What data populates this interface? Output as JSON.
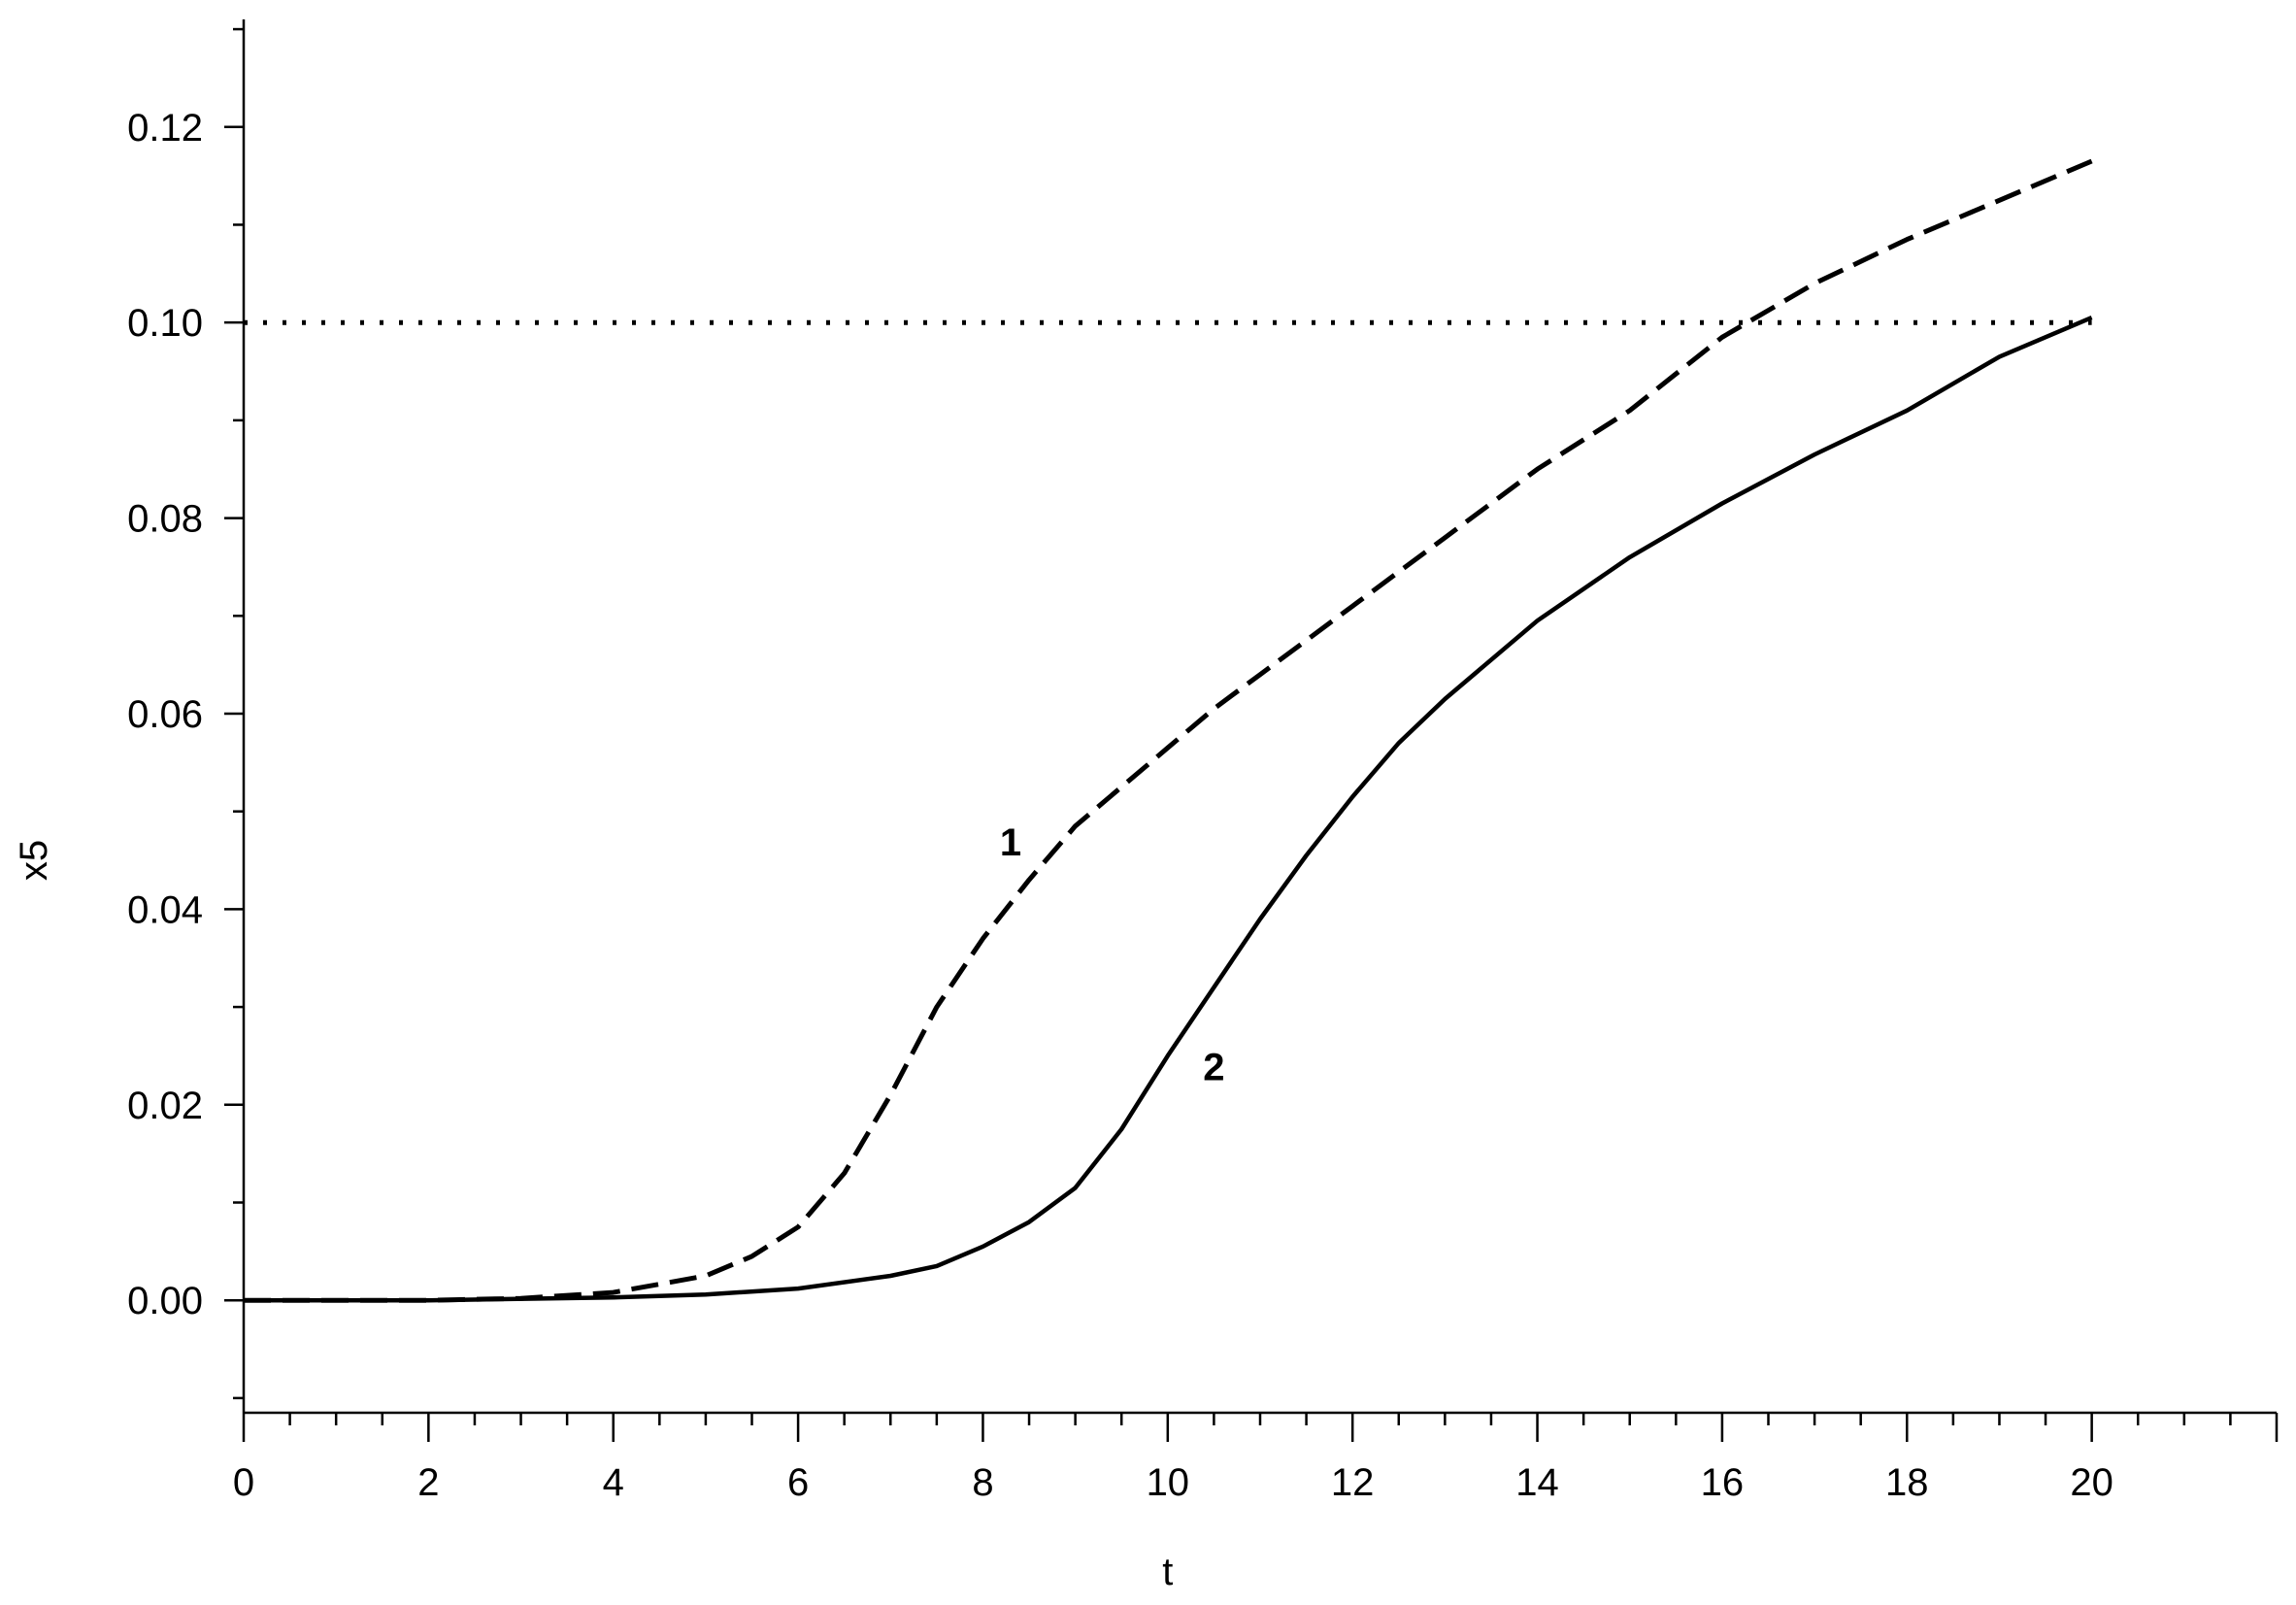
{
  "chart_data": {
    "type": "line",
    "title": "",
    "xlabel": "t",
    "ylabel": "x5",
    "xlim": [
      0,
      22
    ],
    "ylim": [
      -0.0115,
      0.131
    ],
    "grid": false,
    "x_ticks": [
      0,
      2,
      4,
      6,
      8,
      10,
      12,
      14,
      16,
      18,
      20
    ],
    "y_ticks": [
      0.0,
      0.02,
      0.04,
      0.06,
      0.08,
      0.1,
      0.12
    ],
    "x_tick_labels": [
      "0",
      "2",
      "4",
      "6",
      "8",
      "10",
      "12",
      "14",
      "16",
      "18",
      "20"
    ],
    "y_tick_labels": [
      "0.00",
      "0.02",
      "0.04",
      "0.06",
      "0.08",
      "0.10",
      "0.12"
    ],
    "series": [
      {
        "name": "1",
        "style": "dashed",
        "x": [
          0,
          1,
          2,
          3,
          4,
          5,
          5.5,
          6,
          6.5,
          7,
          7.5,
          8,
          8.5,
          9,
          9.5,
          10,
          10.5,
          11,
          11.5,
          12,
          13,
          14,
          15,
          16,
          17,
          18,
          19,
          20
        ],
        "y": [
          0.0,
          0.0,
          0.0,
          0.0002,
          0.0008,
          0.0025,
          0.0045,
          0.0075,
          0.013,
          0.021,
          0.03,
          0.037,
          0.043,
          0.0485,
          0.0525,
          0.0565,
          0.0605,
          0.064,
          0.0675,
          0.071,
          0.078,
          0.085,
          0.091,
          0.0985,
          0.104,
          0.1085,
          0.1125,
          0.1165
        ]
      },
      {
        "name": "2",
        "style": "solid",
        "x": [
          0,
          2,
          4,
          5,
          6,
          7,
          7.5,
          8,
          8.5,
          9,
          9.5,
          10,
          10.5,
          11,
          11.5,
          12,
          12.5,
          13,
          14,
          15,
          16,
          17,
          18,
          19,
          20
        ],
        "y": [
          0.0,
          0.0,
          0.0003,
          0.0006,
          0.0012,
          0.0025,
          0.0035,
          0.0055,
          0.008,
          0.0115,
          0.0175,
          0.025,
          0.032,
          0.039,
          0.0455,
          0.0515,
          0.057,
          0.0615,
          0.0695,
          0.076,
          0.0815,
          0.0865,
          0.091,
          0.0965,
          0.1005
        ]
      },
      {
        "name": "",
        "style": "dotted",
        "x": [
          0,
          20
        ],
        "y": [
          0.1,
          0.1
        ]
      }
    ],
    "annotations": [
      {
        "text": "1",
        "x": 8.3,
        "y": 0.0455
      },
      {
        "text": "2",
        "x": 10.5,
        "y": 0.0225
      }
    ]
  }
}
